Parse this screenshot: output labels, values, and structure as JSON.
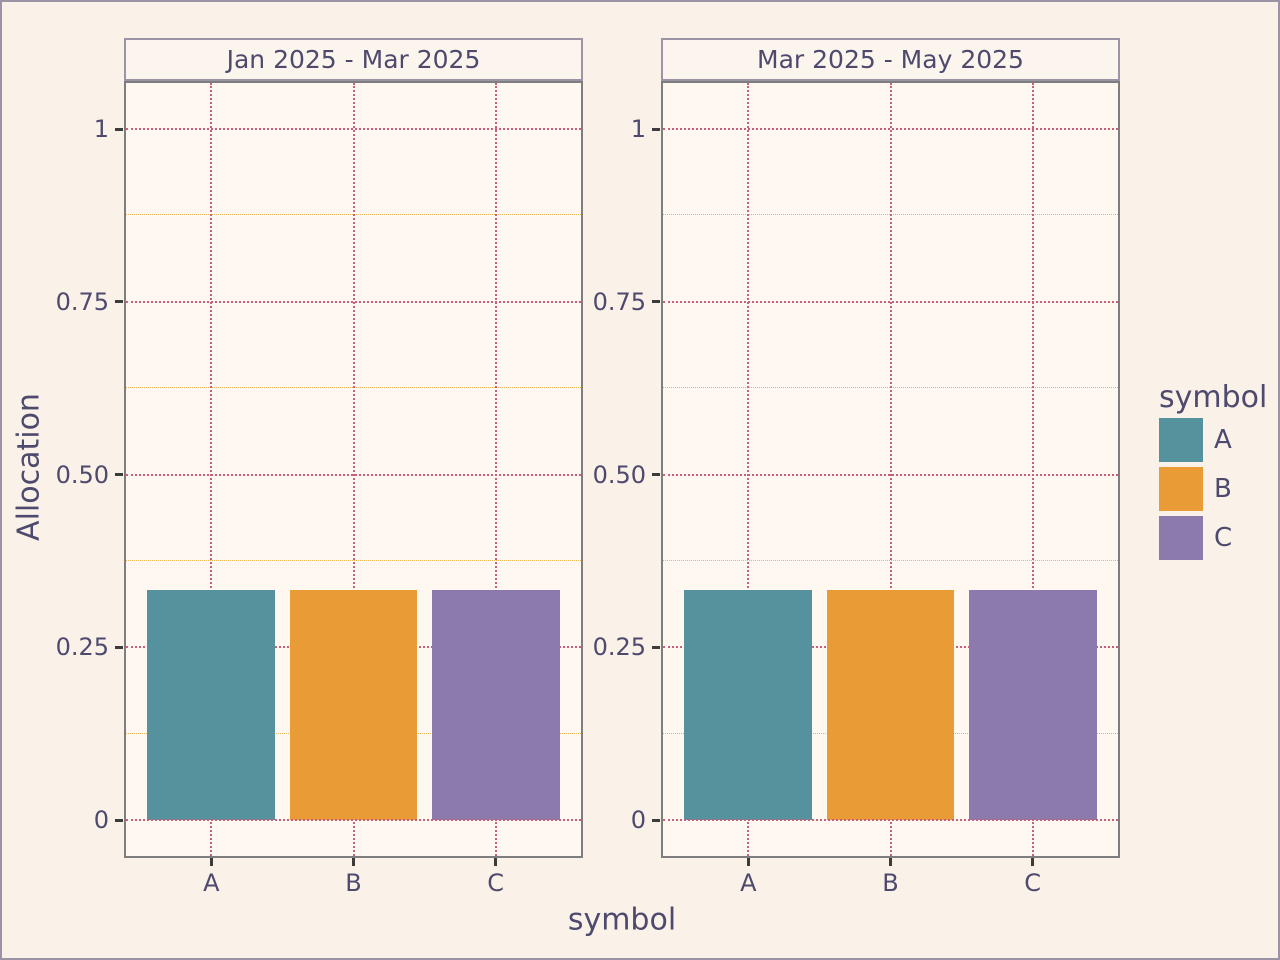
{
  "chart_data": {
    "type": "bar",
    "faceted": true,
    "facets": [
      {
        "title": "Jan 2025 - Mar 2025",
        "categories": [
          "A",
          "B",
          "C"
        ],
        "values": [
          0.333,
          0.333,
          0.333
        ]
      },
      {
        "title": "Mar 2025 - May 2025",
        "categories": [
          "A",
          "B",
          "C"
        ],
        "values": [
          0.333,
          0.333,
          0.333
        ]
      }
    ],
    "xlabel": "symbol",
    "ylabel": "Allocation",
    "ylim": [
      0,
      1.08
    ],
    "y_major_ticks": [
      {
        "value": 0,
        "label": "0"
      },
      {
        "value": 0.25,
        "label": "0.25"
      },
      {
        "value": 0.5,
        "label": "0.50"
      },
      {
        "value": 0.75,
        "label": "0.75"
      },
      {
        "value": 1,
        "label": "1"
      }
    ],
    "y_minor_ticks": [
      0.125,
      0.375,
      0.625,
      0.875
    ],
    "grid": {
      "major": "dotted",
      "minor": "dotted"
    },
    "legend_position": "right",
    "series_colors": {
      "A": "#56929e",
      "B": "#e99c35",
      "C": "#8d7aac"
    }
  },
  "legend": {
    "title": "symbol",
    "entries": [
      {
        "label": "A",
        "color": "#56929e"
      },
      {
        "label": "B",
        "color": "#e99c35"
      },
      {
        "label": "C",
        "color": "#8d7aac"
      }
    ]
  },
  "colors": {
    "background": "#faf1e9",
    "panel_background": "#fff8f0",
    "strip_background": "#fcf5ed",
    "outer_border": "#9b94a7",
    "panel_border": "#7f7e7e",
    "grid_major": "#c75f7d",
    "grid_minor": "#e7b654",
    "text": "#4e4a6e",
    "tick": "#3c3c3c"
  }
}
